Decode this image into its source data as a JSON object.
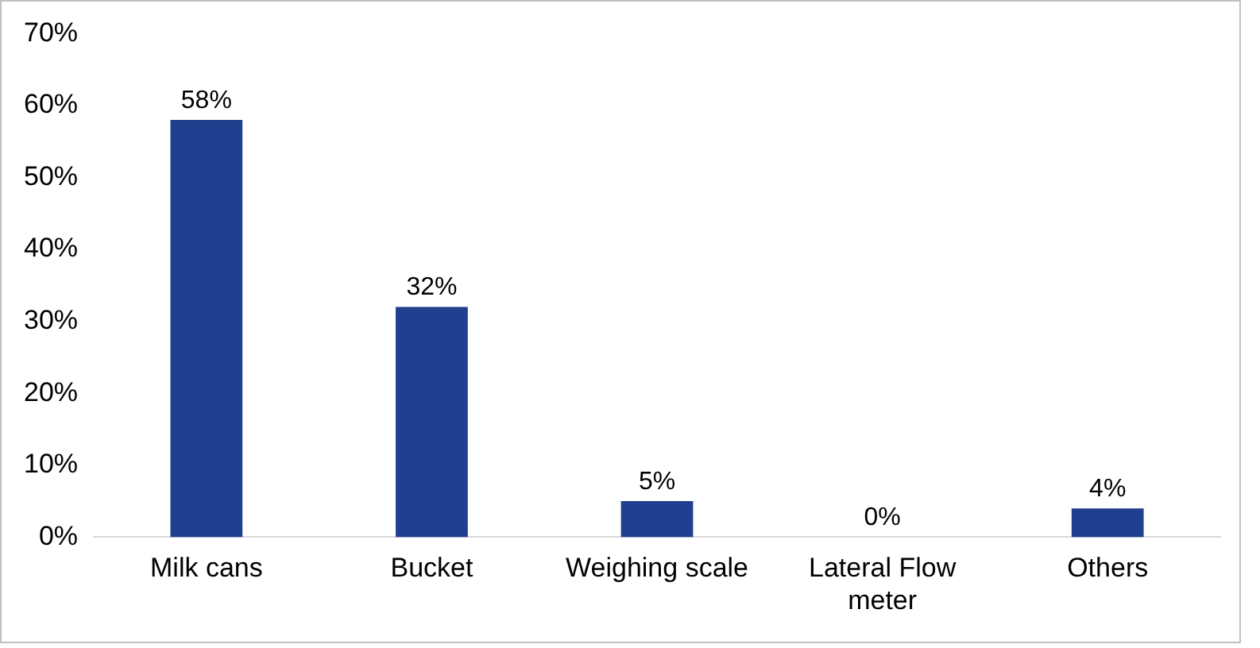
{
  "chart_data": {
    "type": "bar",
    "categories": [
      "Milk cans",
      "Bucket",
      "Weighing scale",
      "Lateral Flow meter",
      "Others"
    ],
    "values": [
      58,
      32,
      5,
      0,
      4
    ],
    "color": "#213f8f",
    "value_labels": [
      "58%",
      "32%",
      "5%",
      "0%",
      "4%"
    ],
    "ylim": [
      0,
      70
    ],
    "yticks": [
      {
        "value": 0,
        "label": "0%"
      },
      {
        "value": 10,
        "label": "10%"
      },
      {
        "value": 20,
        "label": "20%"
      },
      {
        "value": 30,
        "label": "30%"
      },
      {
        "value": 40,
        "label": "40%"
      },
      {
        "value": 50,
        "label": "50%"
      },
      {
        "value": 60,
        "label": "60%"
      },
      {
        "value": 70,
        "label": "70%"
      }
    ],
    "grid": false,
    "legend": false
  }
}
